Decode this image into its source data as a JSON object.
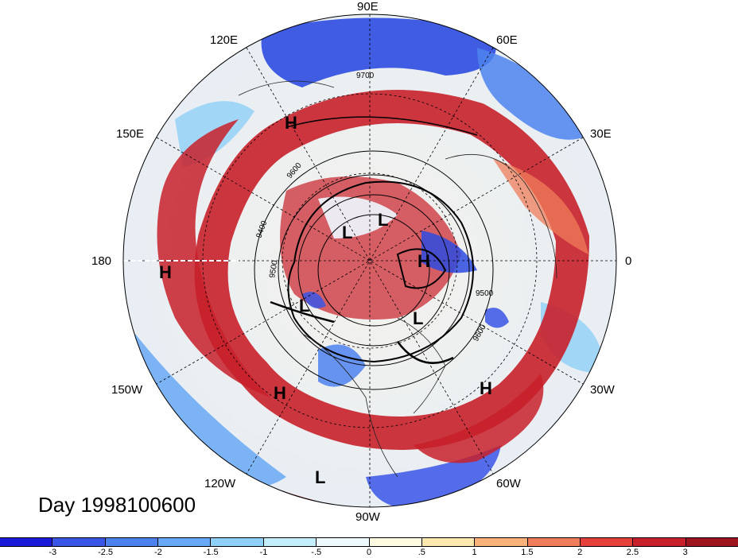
{
  "map": {
    "title": "Day 1998100600",
    "longitude_labels": [
      "90E",
      "60E",
      "30E",
      "0",
      "30W",
      "60W",
      "90W",
      "120W",
      "150W",
      "180",
      "150E",
      "120E"
    ],
    "contour_labels": [
      "9700",
      "9400",
      "9500",
      "9500",
      "9600",
      "9600"
    ],
    "pressure_centers": [
      {
        "label": "H",
        "name": "high-east-siberia"
      },
      {
        "label": "H",
        "name": "high-north-pacific"
      },
      {
        "label": "H",
        "name": "high-eurasia"
      },
      {
        "label": "H",
        "name": "high-east-pacific"
      },
      {
        "label": "H",
        "name": "high-north-atlantic"
      },
      {
        "label": "L",
        "name": "low-arctic-1"
      },
      {
        "label": "L",
        "name": "low-arctic-2"
      },
      {
        "label": "L",
        "name": "low-alaska"
      },
      {
        "label": "L",
        "name": "low-north-atlantic"
      },
      {
        "label": "L",
        "name": "low-south-pacific"
      }
    ],
    "colorbar": {
      "ticks": [
        "-3",
        "-2.5",
        "-2",
        "-1.5",
        "-1",
        "-.5",
        "0",
        ".5",
        "1",
        "1.5",
        "2",
        "2.5",
        "3"
      ],
      "colors": [
        "#1a1adb",
        "#3a55e6",
        "#4d82ee",
        "#68a8f4",
        "#8fd0f8",
        "#c4eefc",
        "#eefaff",
        "#fffbe0",
        "#fde8b0",
        "#f8b27a",
        "#ef7d5a",
        "#e5403a",
        "#c8202a",
        "#a0141f"
      ]
    }
  }
}
